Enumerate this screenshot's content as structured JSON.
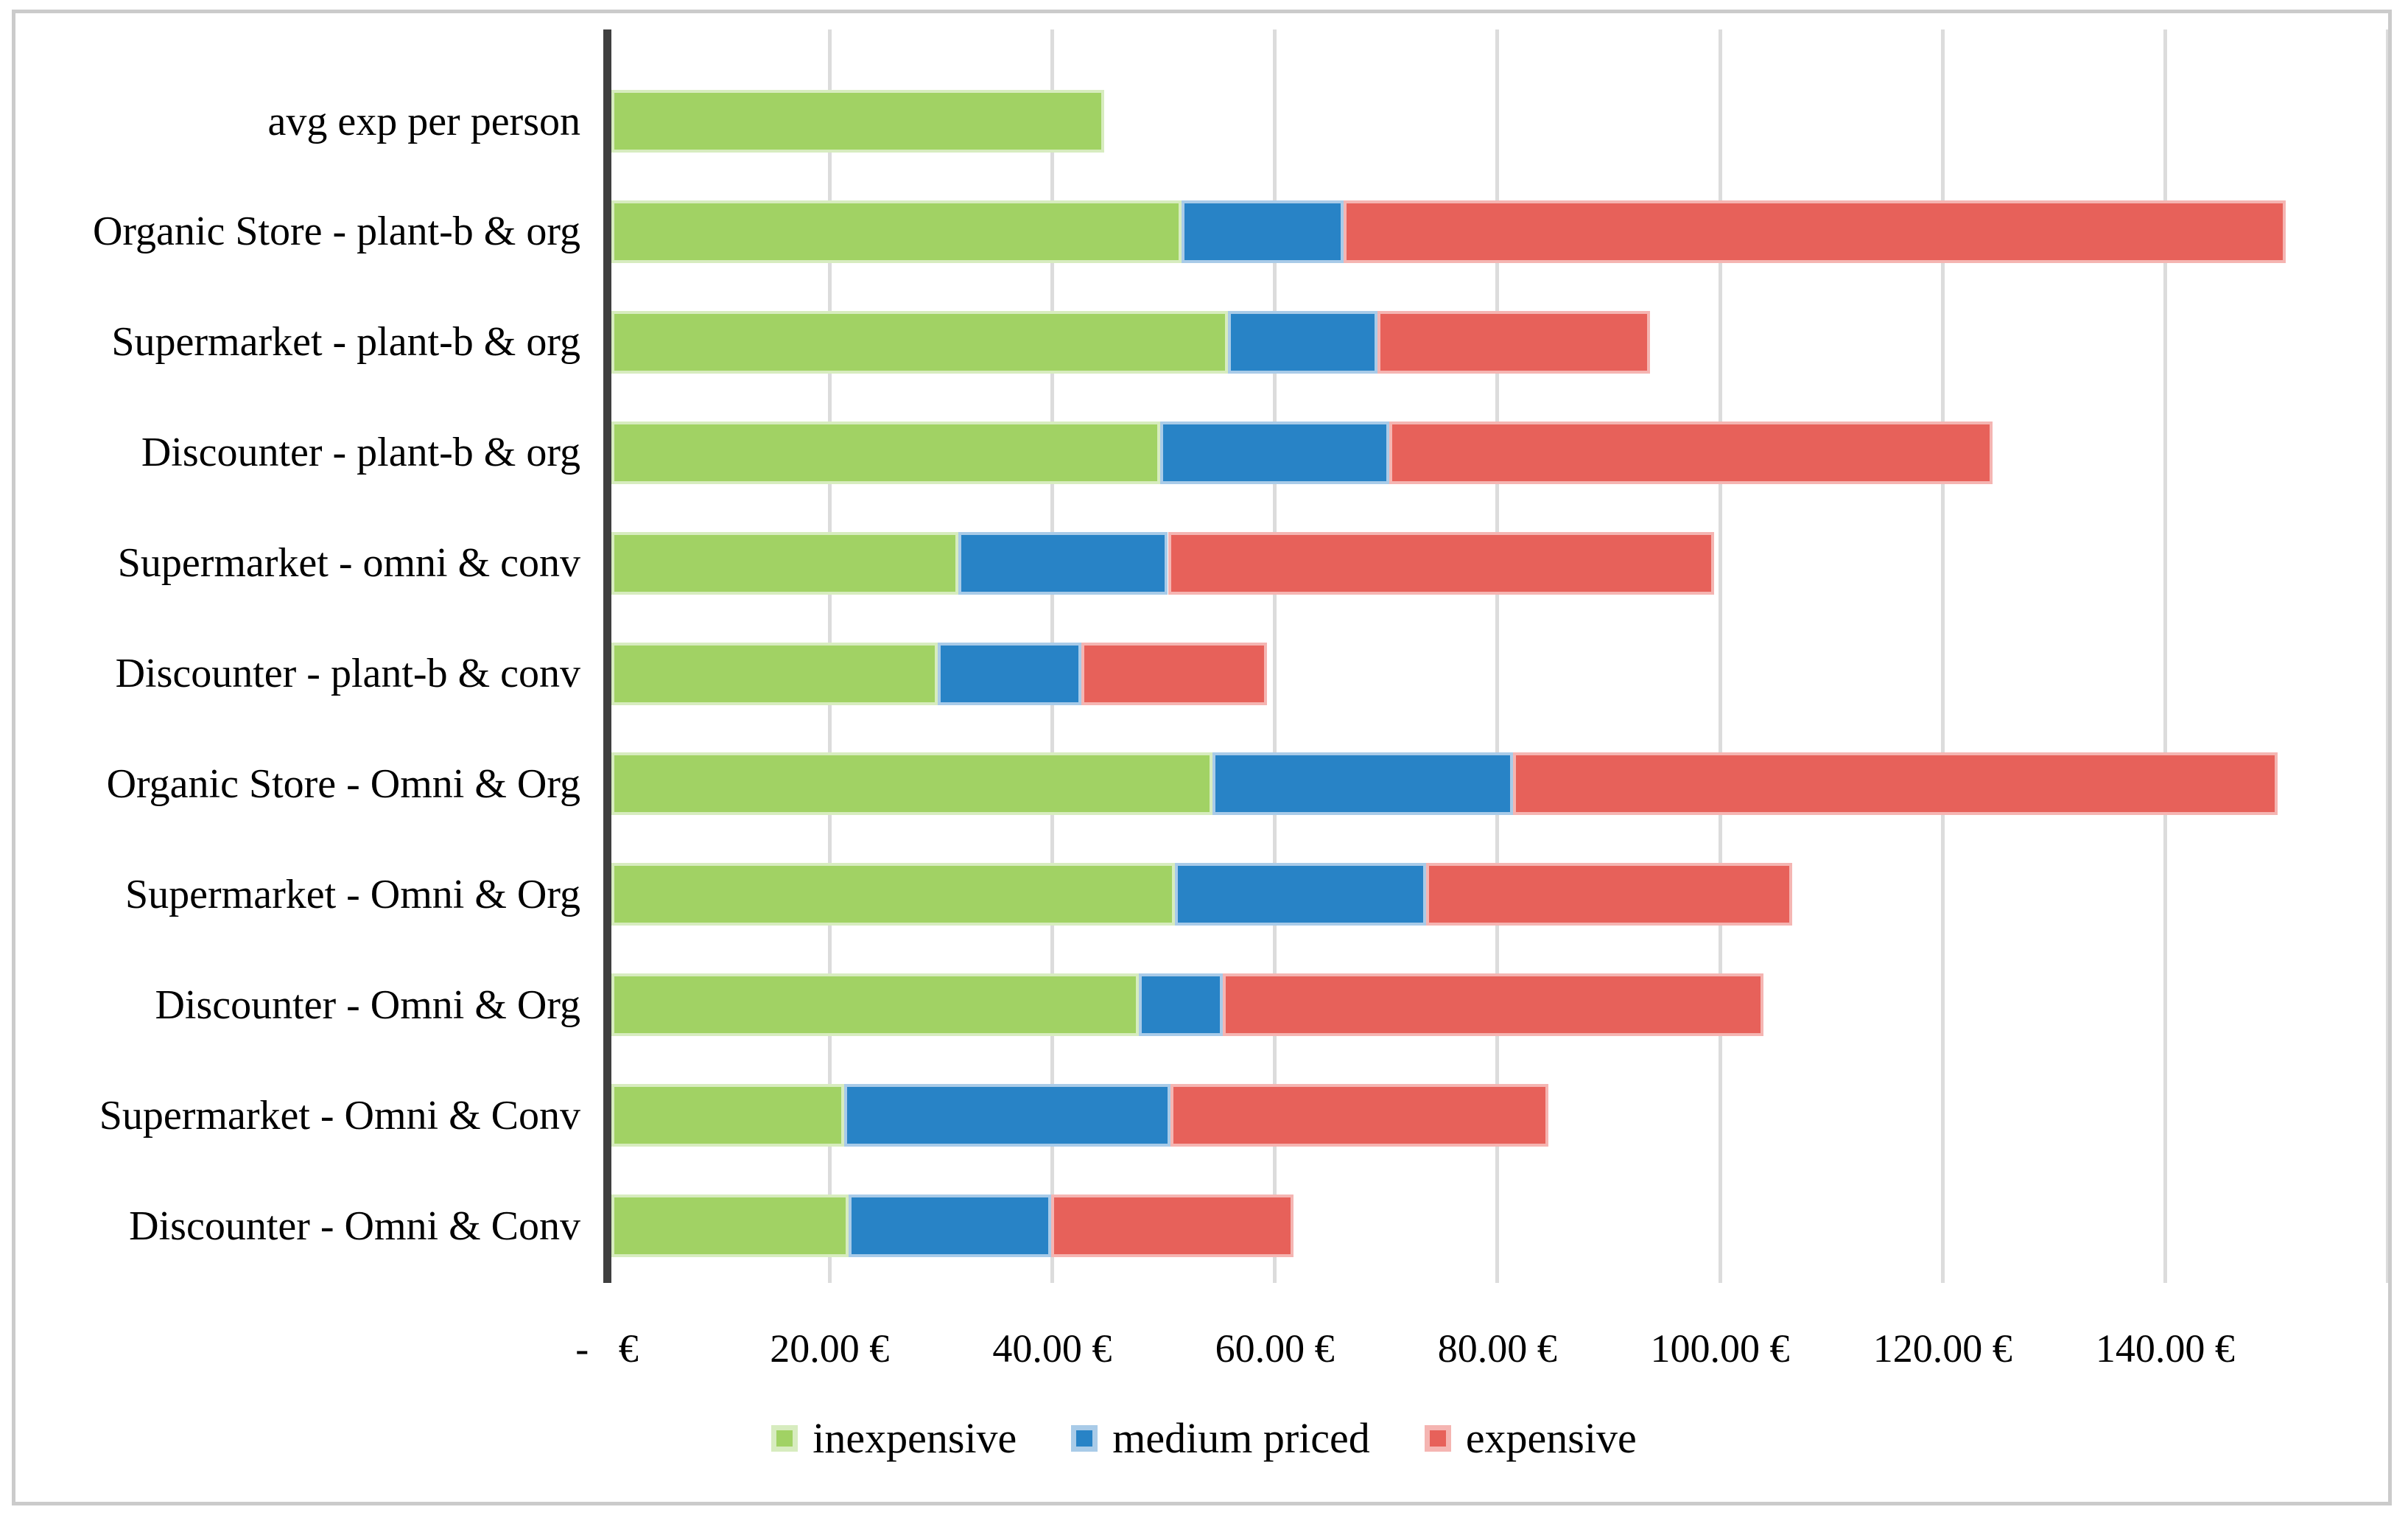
{
  "chart_data": {
    "type": "bar",
    "orientation": "horizontal-stacked",
    "title": "",
    "xlabel": "",
    "ylabel": "",
    "grid": true,
    "axis_max_eur": 160,
    "categories": [
      "avg exp per person",
      "Organic Store - plant-b & org",
      "Supermarket - plant-b & org",
      "Discounter - plant-b & org",
      "Supermarket - omni & conv",
      "Discounter - plant-b & conv",
      "Organic Store - Omni & Org",
      "Supermarket - Omni & Org",
      "Discounter - Omni & Org",
      "Supermarket - Omni & Conv",
      "Discounter - Omni & Conv"
    ],
    "series": [
      {
        "name": "inexpensive",
        "fill": "#a1d264",
        "border": "#d7ecbf",
        "values": [
          44.3,
          51.2,
          55.4,
          49.3,
          31.2,
          29.3,
          54.0,
          50.6,
          47.4,
          20.9,
          21.3
        ]
      },
      {
        "name": "medium priced",
        "fill": "#2883c6",
        "border": "#a9cbe8",
        "values": [
          0,
          14.6,
          13.4,
          20.6,
          18.8,
          12.9,
          27.0,
          22.6,
          7.5,
          29.3,
          18.2
        ]
      },
      {
        "name": "expensive",
        "fill": "#e7615a",
        "border": "#f5b5b2",
        "values": [
          0,
          84.6,
          24.5,
          54.2,
          49.1,
          16.7,
          68.7,
          32.9,
          48.6,
          34.0,
          21.8
        ]
      }
    ],
    "totals_eur": [
      44.3,
      150.4,
      93.3,
      124.1,
      99.1,
      58.9,
      149.7,
      106.1,
      103.5,
      84.2,
      61.3
    ],
    "x_axis": {
      "ticks": [
        "-   €",
        "20.00 €",
        "40.00 €",
        "60.00 €",
        "80.00 €",
        "100.00 €",
        "120.00 €",
        "140.00 €"
      ],
      "tick_values": [
        0,
        20,
        40,
        60,
        80,
        100,
        120,
        140
      ],
      "gridline_step": 20
    },
    "legend": {
      "position": "bottom",
      "entries": [
        "inexpensive",
        "medium priced",
        "expensive"
      ]
    }
  },
  "colors": {
    "axis_line": "#3f3f3f",
    "gridline": "#dcdcdc",
    "frame_border": "#cbcbcb",
    "text": "#000000",
    "background": "#ffffff"
  }
}
